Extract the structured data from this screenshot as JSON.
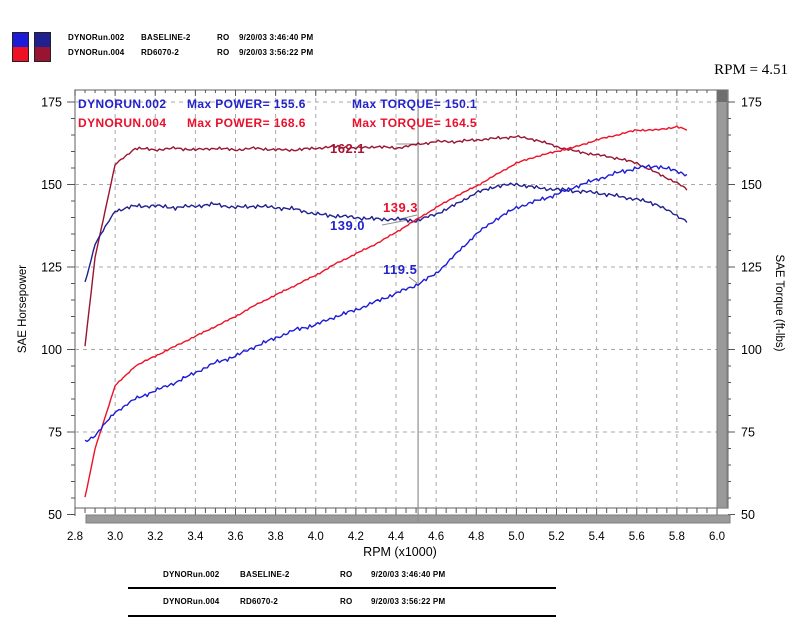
{
  "header": {
    "rpm_readout": "RPM = 4.51",
    "legend": {
      "rows": [
        {
          "name": "DYNORun.002",
          "config": "BASELINE-2",
          "ro": "RO",
          "datetime": "9/20/03 3:46:40 PM"
        },
        {
          "name": "DYNORun.004",
          "config": "RD6070-2",
          "ro": "RO",
          "datetime": "9/20/03 3:56:22 PM"
        }
      ]
    }
  },
  "colors": {
    "power_002": "#1c1cd6",
    "power_004": "#ee1126",
    "torque_002": "#20208f",
    "torque_004": "#991430",
    "annotation_blue": "#2222cc",
    "annotation_red": "#e8102c",
    "cursor_label_dark_red": "#a81434"
  },
  "chart_data": {
    "type": "line",
    "xlabel": "RPM (x1000)",
    "ylabel_left": "SAE Horsepower",
    "ylabel_right": "SAE Torque (ft-lbs)",
    "xlim": [
      2.8,
      6.0
    ],
    "ylim": [
      50,
      175
    ],
    "x_ticks": [
      2.8,
      3.0,
      3.2,
      3.4,
      3.6,
      3.8,
      4.0,
      4.2,
      4.4,
      4.6,
      4.8,
      5.0,
      5.2,
      5.4,
      5.6,
      5.8,
      6.0
    ],
    "y_ticks": [
      50,
      75,
      100,
      125,
      150,
      175
    ],
    "grid": "dashed",
    "cursor_rpm": 4.51,
    "x": [
      2.85,
      2.9,
      3.0,
      3.1,
      3.2,
      3.3,
      3.4,
      3.5,
      3.6,
      3.7,
      3.8,
      3.9,
      4.0,
      4.1,
      4.2,
      4.3,
      4.4,
      4.5,
      4.6,
      4.7,
      4.8,
      4.9,
      5.0,
      5.1,
      5.2,
      5.3,
      5.4,
      5.5,
      5.6,
      5.7,
      5.8,
      5.85
    ],
    "series": [
      {
        "id": "torque_004",
        "name": "DYNORUN.004 Torque",
        "axis": "right",
        "color": "#991430",
        "amp": 0.5,
        "values": [
          101,
          128,
          156,
          161,
          160.5,
          161,
          160.5,
          161,
          160.5,
          161,
          160.5,
          160.5,
          161,
          161.5,
          161,
          161.5,
          161,
          162.1,
          163,
          163,
          163.5,
          164,
          164.5,
          163.5,
          161.5,
          160,
          159,
          158,
          156.5,
          153.5,
          150.5,
          148.5
        ]
      },
      {
        "id": "torque_002",
        "name": "DYNORUN.002 Torque",
        "axis": "right",
        "color": "#20208f",
        "amp": 0.7,
        "values": [
          120,
          132,
          142,
          143.5,
          143.5,
          143,
          143.5,
          144,
          143,
          143.5,
          143,
          142.5,
          141,
          140.5,
          140,
          139.5,
          139.5,
          139.0,
          141,
          144,
          147.5,
          149.5,
          150.1,
          149,
          148.5,
          148,
          147.5,
          146.5,
          145.5,
          144,
          140.5,
          139
        ]
      },
      {
        "id": "power_004",
        "name": "DYNORUN.004 Power",
        "axis": "left",
        "color": "#ee1126",
        "amp": 0.35,
        "values": [
          55,
          70,
          89,
          95,
          98,
          101,
          104,
          107,
          110,
          113.5,
          116.5,
          119.5,
          122.5,
          126,
          129,
          132,
          135.5,
          139.3,
          143,
          146.5,
          149.5,
          153,
          156.5,
          158.5,
          160,
          161.5,
          163.5,
          165,
          166.5,
          166.5,
          167.5,
          166.5
        ]
      },
      {
        "id": "power_002",
        "name": "DYNORUN.002 Power",
        "axis": "left",
        "color": "#1c1cd6",
        "amp": 0.8,
        "values": [
          72,
          74,
          81,
          85,
          87.5,
          90,
          93,
          96,
          98,
          101,
          103.5,
          106,
          107.5,
          110,
          112,
          114.5,
          117,
          119.5,
          123,
          129,
          135,
          139.5,
          143,
          145,
          147,
          149.5,
          151.5,
          153.5,
          155,
          155.6,
          154,
          153
        ]
      }
    ],
    "annotations": {
      "line1": {
        "run": "DYNORUN.002",
        "power": "Max POWER= 155.6",
        "torque": "Max TORQUE= 150.1"
      },
      "line2": {
        "run": "DYNORUN.004",
        "power": "Max POWER= 168.6",
        "torque": "Max TORQUE= 164.5"
      }
    },
    "cursor_values": [
      {
        "text": "162.1",
        "series": "torque_004"
      },
      {
        "text": "139.3",
        "series": "power_004"
      },
      {
        "text": "139.0",
        "series": "torque_002"
      },
      {
        "text": "119.5",
        "series": "power_002"
      }
    ]
  },
  "footer_table": {
    "rows": [
      {
        "name": "DYNORun.002",
        "config": "BASELINE-2",
        "ro": "RO",
        "datetime": "9/20/03 3:46:40 PM"
      },
      {
        "name": "DYNORun.004",
        "config": "RD6070-2",
        "ro": "RO",
        "datetime": "9/20/03 3:56:22 PM"
      }
    ]
  }
}
